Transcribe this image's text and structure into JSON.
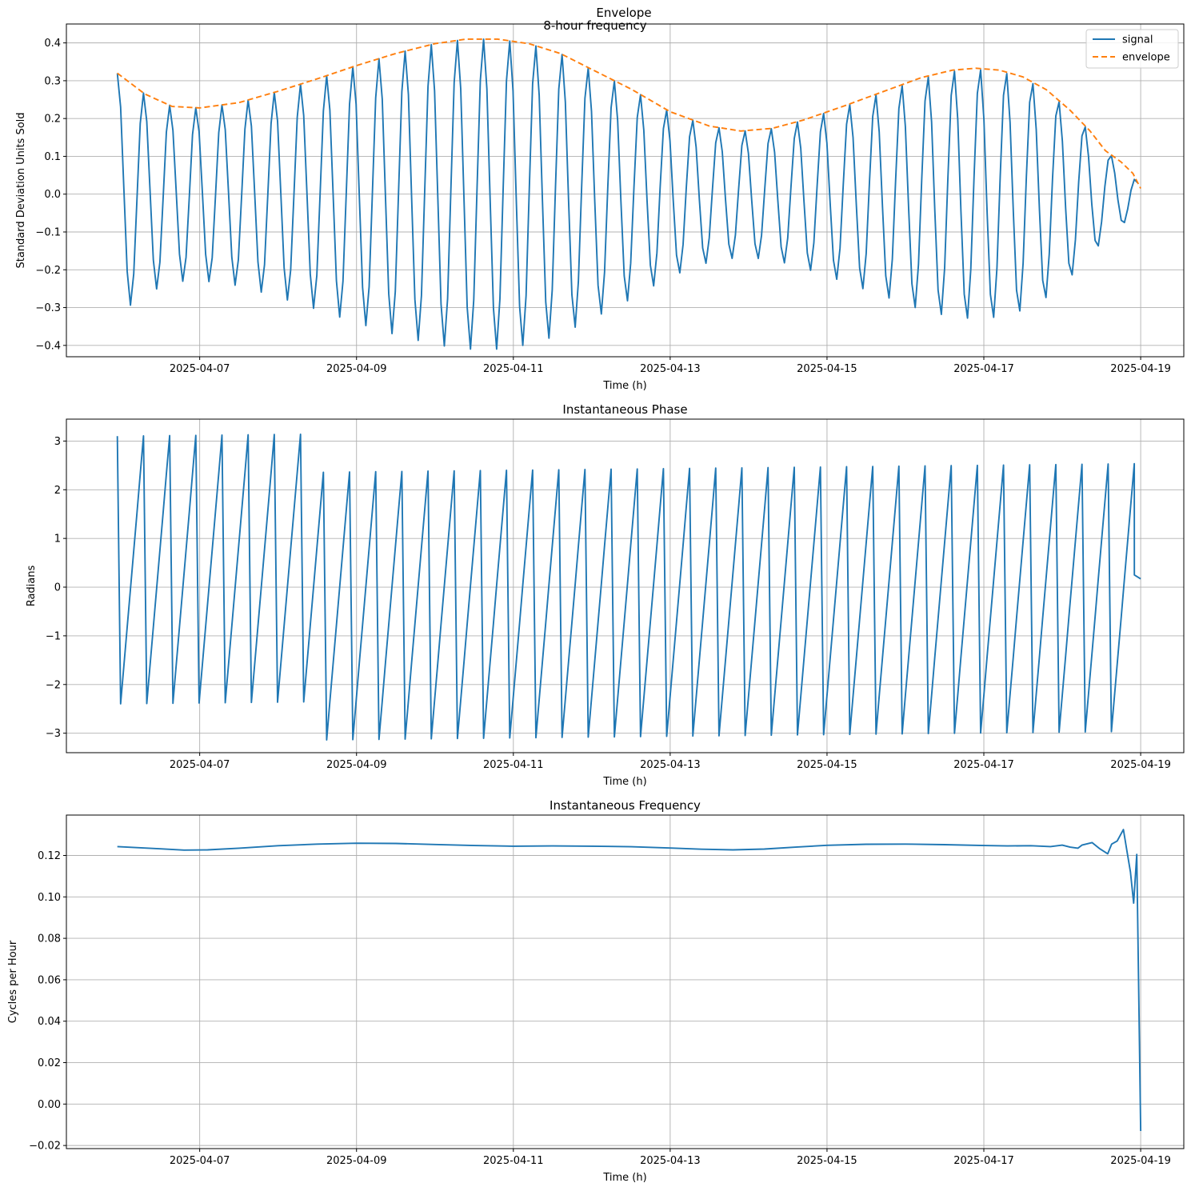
{
  "figure": {
    "suptitle": "Envelope",
    "subtitle": "8-hour frequency"
  },
  "colors": {
    "signal": "#1f77b4",
    "envelope": "#ff7f0e",
    "grid": "#b0b0b0"
  },
  "chart_data": [
    {
      "id": "envelope",
      "type": "line",
      "title": "",
      "xlabel": "Time (h)",
      "ylabel": "Standard Deviation Units Sold",
      "x_unit": "days since 2025-04-06 00:00",
      "xlim": [
        -0.7,
        13.55
      ],
      "ylim": [
        -0.43,
        0.45
      ],
      "x_ticks": [
        {
          "value": 1,
          "label": "2025-04-07"
        },
        {
          "value": 3,
          "label": "2025-04-09"
        },
        {
          "value": 5,
          "label": "2025-04-11"
        },
        {
          "value": 7,
          "label": "2025-04-13"
        },
        {
          "value": 9,
          "label": "2025-04-15"
        },
        {
          "value": 11,
          "label": "2025-04-17"
        },
        {
          "value": 13,
          "label": "2025-04-19"
        }
      ],
      "y_ticks": [
        {
          "value": 0.4,
          "label": "0.4"
        },
        {
          "value": 0.3,
          "label": "0.3"
        },
        {
          "value": 0.2,
          "label": "0.2"
        },
        {
          "value": 0.1,
          "label": "0.1"
        },
        {
          "value": 0.0,
          "label": "0.0"
        },
        {
          "value": -0.1,
          "label": "−0.1"
        },
        {
          "value": -0.2,
          "label": "−0.2"
        },
        {
          "value": -0.3,
          "label": "−0.3"
        },
        {
          "value": -0.4,
          "label": "−0.4"
        }
      ],
      "grid": true,
      "legend": "upper right",
      "signal": {
        "name": "signal",
        "x_start": -0.05,
        "x_step": 0.0417,
        "period_days": 0.3333,
        "phase0": 3.1,
        "amplitude": [
          [
            -0.05,
            0.32
          ],
          [
            0.3,
            0.265
          ],
          [
            0.65,
            0.232
          ],
          [
            1.0,
            0.228
          ],
          [
            1.5,
            0.242
          ],
          [
            2.0,
            0.272
          ],
          [
            2.5,
            0.305
          ],
          [
            3.0,
            0.34
          ],
          [
            3.5,
            0.372
          ],
          [
            4.0,
            0.398
          ],
          [
            4.4,
            0.41
          ],
          [
            4.8,
            0.41
          ],
          [
            5.2,
            0.398
          ],
          [
            5.6,
            0.372
          ],
          [
            6.0,
            0.33
          ],
          [
            6.5,
            0.278
          ],
          [
            7.0,
            0.218
          ],
          [
            7.5,
            0.18
          ],
          [
            7.9,
            0.167
          ],
          [
            8.3,
            0.174
          ],
          [
            8.7,
            0.196
          ],
          [
            9.2,
            0.232
          ],
          [
            9.7,
            0.27
          ],
          [
            10.2,
            0.308
          ],
          [
            10.6,
            0.328
          ],
          [
            10.9,
            0.333
          ],
          [
            11.2,
            0.328
          ],
          [
            11.5,
            0.31
          ],
          [
            11.8,
            0.276
          ],
          [
            12.1,
            0.222
          ],
          [
            12.35,
            0.168
          ],
          [
            12.55,
            0.115
          ],
          [
            12.75,
            0.085
          ],
          [
            12.9,
            0.055
          ],
          [
            13.0,
            0.015
          ]
        ]
      },
      "envelope": {
        "name": "envelope",
        "points": [
          [
            -0.05,
            0.32
          ],
          [
            0.3,
            0.265
          ],
          [
            0.65,
            0.232
          ],
          [
            1.0,
            0.228
          ],
          [
            1.5,
            0.242
          ],
          [
            2.0,
            0.272
          ],
          [
            2.5,
            0.305
          ],
          [
            3.0,
            0.34
          ],
          [
            3.5,
            0.372
          ],
          [
            4.0,
            0.398
          ],
          [
            4.4,
            0.41
          ],
          [
            4.8,
            0.41
          ],
          [
            5.2,
            0.398
          ],
          [
            5.6,
            0.372
          ],
          [
            6.0,
            0.33
          ],
          [
            6.5,
            0.278
          ],
          [
            7.0,
            0.218
          ],
          [
            7.5,
            0.18
          ],
          [
            7.9,
            0.167
          ],
          [
            8.3,
            0.174
          ],
          [
            8.7,
            0.196
          ],
          [
            9.2,
            0.232
          ],
          [
            9.7,
            0.27
          ],
          [
            10.2,
            0.308
          ],
          [
            10.6,
            0.328
          ],
          [
            10.9,
            0.333
          ],
          [
            11.2,
            0.328
          ],
          [
            11.5,
            0.31
          ],
          [
            11.8,
            0.276
          ],
          [
            12.1,
            0.222
          ],
          [
            12.35,
            0.168
          ],
          [
            12.55,
            0.115
          ],
          [
            12.75,
            0.085
          ],
          [
            12.9,
            0.055
          ],
          [
            13.0,
            0.015
          ]
        ]
      },
      "legend_entries": [
        "signal",
        "envelope"
      ]
    },
    {
      "id": "phase",
      "type": "line",
      "title": "Instantaneous Phase",
      "xlabel": "Time (h)",
      "ylabel": "Radians",
      "x_unit": "days since 2025-04-06 00:00",
      "xlim": [
        -0.7,
        13.55
      ],
      "ylim": [
        -3.4,
        3.45
      ],
      "x_ticks": [
        {
          "value": 1,
          "label": "2025-04-07"
        },
        {
          "value": 3,
          "label": "2025-04-09"
        },
        {
          "value": 5,
          "label": "2025-04-11"
        },
        {
          "value": 7,
          "label": "2025-04-13"
        },
        {
          "value": 9,
          "label": "2025-04-15"
        },
        {
          "value": 11,
          "label": "2025-04-17"
        },
        {
          "value": 13,
          "label": "2025-04-19"
        }
      ],
      "y_ticks": [
        {
          "value": 3,
          "label": "3"
        },
        {
          "value": 2,
          "label": "2"
        },
        {
          "value": 1,
          "label": "1"
        },
        {
          "value": 0,
          "label": "0"
        },
        {
          "value": -1,
          "label": "−1"
        },
        {
          "value": -2,
          "label": "−2"
        },
        {
          "value": -3,
          "label": "−3"
        }
      ],
      "grid": true,
      "series": [
        {
          "name": "phase",
          "x_start": -0.05,
          "x_step": 0.0417,
          "period_days": 0.3333,
          "phase0": 3.1,
          "x_end": 13.0,
          "tail": [
            [
              12.92,
              0.25
            ],
            [
              13.0,
              0.17
            ]
          ]
        }
      ]
    },
    {
      "id": "frequency",
      "type": "line",
      "title": "Instantaneous Frequency",
      "xlabel": "Time (h)",
      "ylabel": "Cycles per Hour",
      "x_unit": "days since 2025-04-06 00:00",
      "xlim": [
        -0.7,
        13.55
      ],
      "ylim": [
        -0.0215,
        0.1395
      ],
      "x_ticks": [
        {
          "value": 1,
          "label": "2025-04-07"
        },
        {
          "value": 3,
          "label": "2025-04-09"
        },
        {
          "value": 5,
          "label": "2025-04-11"
        },
        {
          "value": 7,
          "label": "2025-04-13"
        },
        {
          "value": 9,
          "label": "2025-04-15"
        },
        {
          "value": 11,
          "label": "2025-04-17"
        },
        {
          "value": 13,
          "label": "2025-04-19"
        }
      ],
      "y_ticks": [
        {
          "value": 0.12,
          "label": "0.12"
        },
        {
          "value": 0.1,
          "label": "0.10"
        },
        {
          "value": 0.08,
          "label": "0.08"
        },
        {
          "value": 0.06,
          "label": "0.06"
        },
        {
          "value": 0.04,
          "label": "0.04"
        },
        {
          "value": 0.02,
          "label": "0.02"
        },
        {
          "value": 0.0,
          "label": "0.00"
        },
        {
          "value": -0.02,
          "label": "−0.02"
        }
      ],
      "grid": true,
      "series": [
        {
          "name": "frequency",
          "points": [
            [
              -0.05,
              0.1243
            ],
            [
              0.5,
              0.1232
            ],
            [
              0.8,
              0.1226
            ],
            [
              1.1,
              0.1227
            ],
            [
              1.5,
              0.1235
            ],
            [
              2.0,
              0.1247
            ],
            [
              2.5,
              0.1255
            ],
            [
              3.0,
              0.1259
            ],
            [
              3.5,
              0.1258
            ],
            [
              4.0,
              0.1253
            ],
            [
              4.5,
              0.1248
            ],
            [
              5.0,
              0.1245
            ],
            [
              5.5,
              0.1246
            ],
            [
              6.0,
              0.1245
            ],
            [
              6.5,
              0.1242
            ],
            [
              7.0,
              0.1236
            ],
            [
              7.4,
              0.123
            ],
            [
              7.8,
              0.1227
            ],
            [
              8.2,
              0.1231
            ],
            [
              8.6,
              0.124
            ],
            [
              9.0,
              0.1249
            ],
            [
              9.5,
              0.1254
            ],
            [
              10.0,
              0.1255
            ],
            [
              10.5,
              0.1252
            ],
            [
              11.0,
              0.1248
            ],
            [
              11.3,
              0.1246
            ],
            [
              11.6,
              0.1247
            ],
            [
              11.85,
              0.1243
            ],
            [
              12.0,
              0.125
            ],
            [
              12.1,
              0.124
            ],
            [
              12.2,
              0.1235
            ],
            [
              12.25,
              0.125
            ],
            [
              12.38,
              0.1262
            ],
            [
              12.48,
              0.1232
            ],
            [
              12.58,
              0.1208
            ],
            [
              12.63,
              0.1255
            ],
            [
              12.7,
              0.127
            ],
            [
              12.78,
              0.1325
            ],
            [
              12.83,
              0.121
            ],
            [
              12.87,
              0.112
            ],
            [
              12.91,
              0.097
            ],
            [
              12.95,
              0.1205
            ],
            [
              13.0,
              -0.013
            ]
          ]
        }
      ]
    }
  ]
}
